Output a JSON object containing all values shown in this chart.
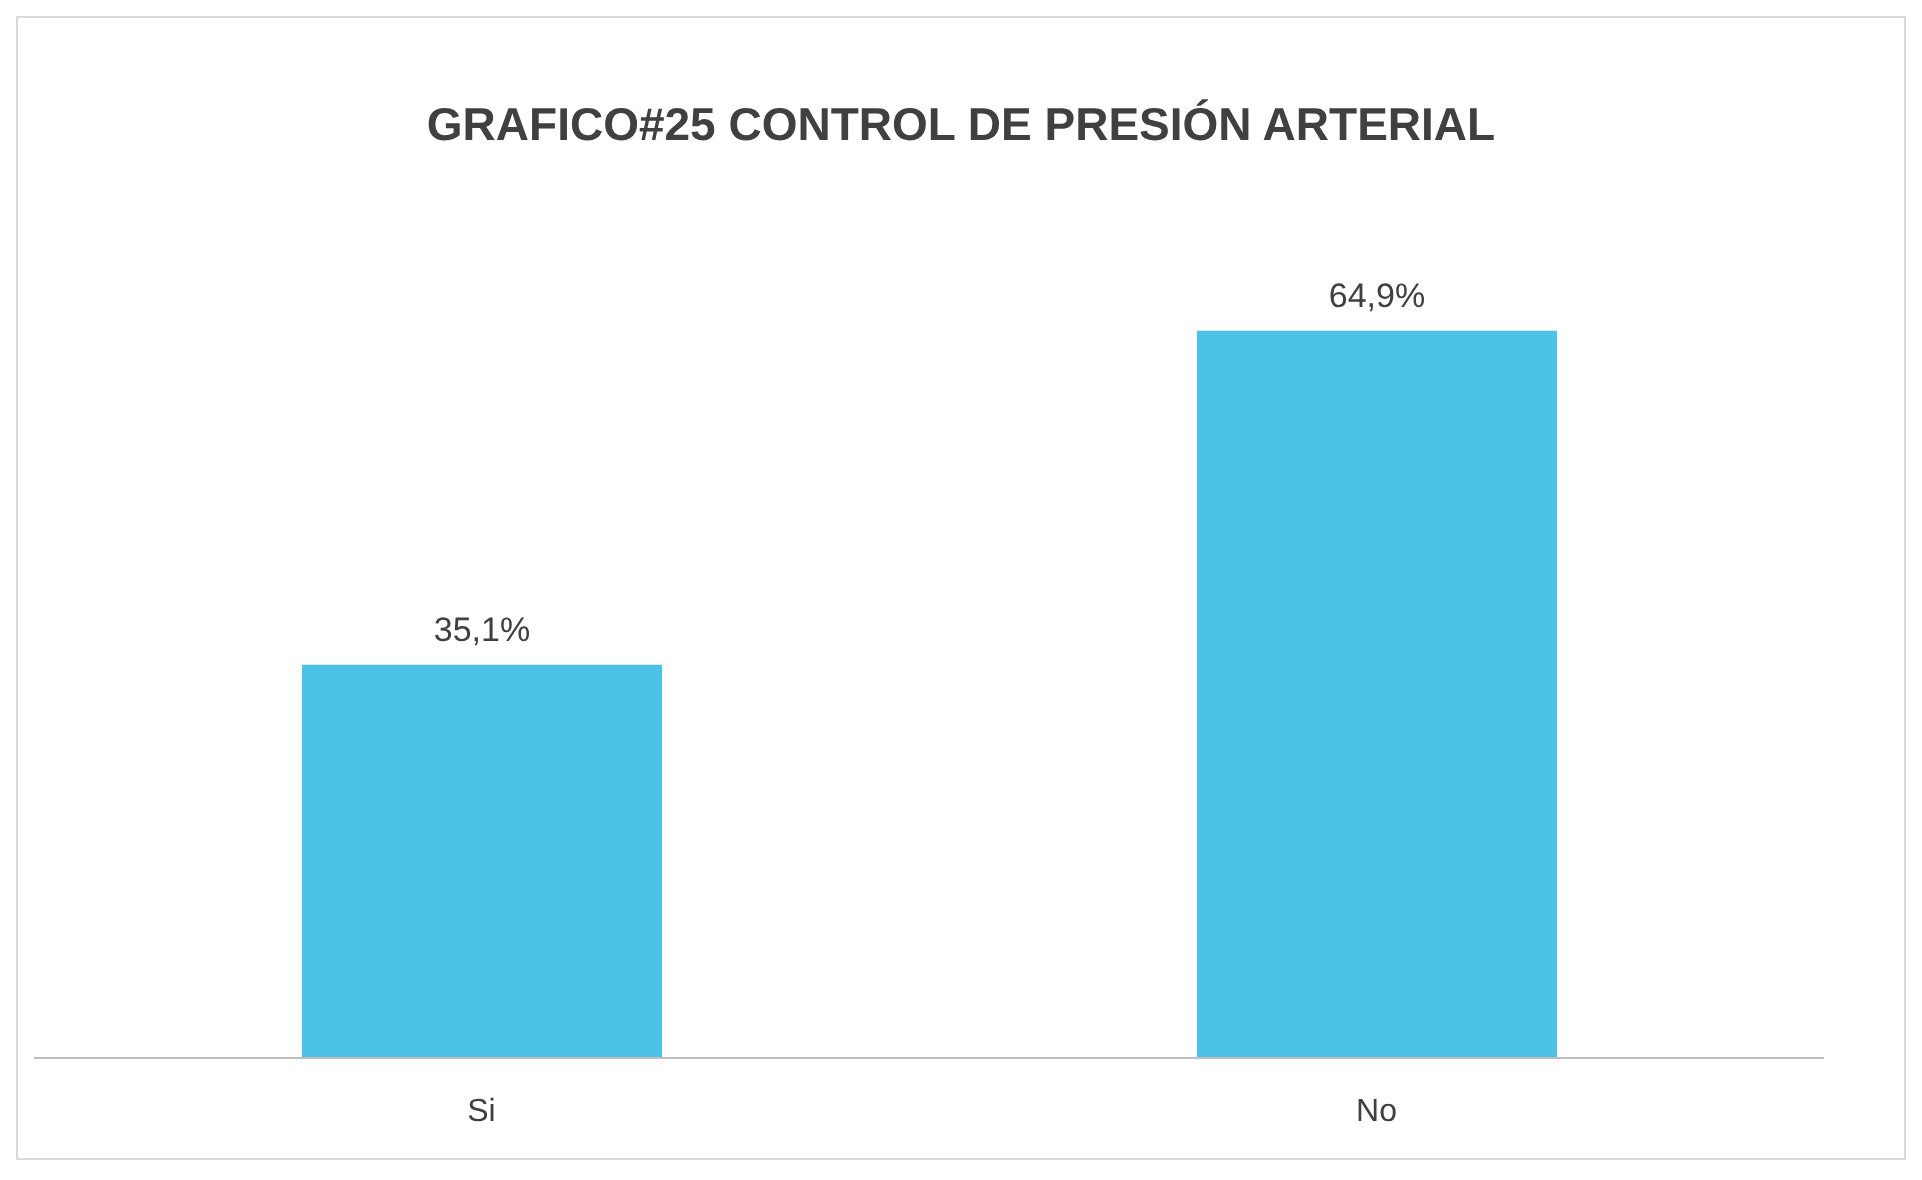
{
  "chart_data": {
    "type": "bar",
    "title": "GRAFICO#25 CONTROL DE PRESIÓN ARTERIAL",
    "categories": [
      "Si",
      "No"
    ],
    "values": [
      35.1,
      64.9
    ],
    "value_labels": [
      "35,1%",
      "64,9%"
    ],
    "color": "#4cc2e8"
  }
}
